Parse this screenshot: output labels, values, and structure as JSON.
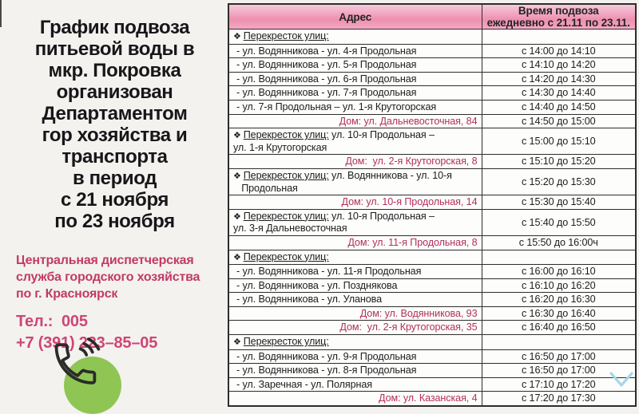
{
  "panel": {
    "title": "График подвоза\nпитьевой воды в\nмкр. Покровка\nорганизован\nДепартаментом\nгор хозяйства и\nтранспорта\nв период\nс 21 ноября\nпо 23 ноября",
    "service": "Центральная диспетчерская\nслужба городского хозяйства\nпо  г. Красноярск",
    "phone_label": "Тел.:  005",
    "phone_number": "+7 (391) 223–85–05"
  },
  "colors": {
    "accent_crimson": "#c23a68",
    "phone_pink": "#ce4577",
    "dom_text_red": "#b12f5e",
    "header_pink": "#ee8fb0",
    "badge_green": "#8fc653",
    "chevron_blue": "#a5d6ea"
  },
  "table": {
    "header": {
      "address": "Адрес",
      "time": "Время подвоза\nежедневно с 21.11 по 23.11."
    },
    "rows": [
      {
        "type": "section",
        "bullet": "❖",
        "underlined": "Перекресток улиц:",
        "rest": "",
        "time": ""
      },
      {
        "type": "detail",
        "address": "- ул. Водянникова - ул. 4-я Продольная",
        "time": "с 14:00 до 14:10"
      },
      {
        "type": "detail",
        "address": "- ул. Водянникова - ул. 5-я Продольная",
        "time": "с 14:10 до 14:20"
      },
      {
        "type": "detail",
        "address": "- ул. Водянникова - ул. 6-я Продольная",
        "time": "с 14:20 до 14:30"
      },
      {
        "type": "detail",
        "address": "- ул. Водянникова - ул. 7-я Продольная",
        "time": "с 14:30 до 14:40"
      },
      {
        "type": "detail",
        "address": "- ул. 7-я Продольная – ул. 1-я Крутогорская",
        "time": "с 14:40 до 14:50"
      },
      {
        "type": "dom",
        "address": "Дом: ул. Дальневосточная, 84",
        "time": "с 14:50 до 15:00"
      },
      {
        "type": "section",
        "bullet": "❖",
        "underlined": "Перекресток улиц:",
        "rest": " ул. 10-я Продольная –\nул. 1-я Крутогорская",
        "time": "с 15:00 до 15:10"
      },
      {
        "type": "dom",
        "address": "Дом:  ул. 2-я Крутогорская, 8",
        "time": "с 15:10 до 15:20"
      },
      {
        "type": "section",
        "bullet": "❖",
        "underlined": "Перекресток улиц:",
        "rest": " ул. Водянникова - ул. 10-я\n   Продольная",
        "time": "с 15:20 до 15:30"
      },
      {
        "type": "dom",
        "address": "Дом: ул. 10-я Продольная, 14",
        "time": "с 15:30 до 15:40"
      },
      {
        "type": "section",
        "bullet": "❖",
        "underlined": "Перекресток улиц:",
        "rest": " ул. 10-я Продольная –\nул. 3-я Дальневосточная",
        "time": "с 15:40 до 15:50"
      },
      {
        "type": "dom",
        "address": "Дом: ул. 11-я Продольная, 8",
        "time": "с 15:50 до 16:00ч"
      },
      {
        "type": "section",
        "bullet": "❖",
        "underlined": "Перекресток улиц:",
        "rest": "",
        "time": ""
      },
      {
        "type": "detail",
        "address": "- ул. Водянникова - ул. 11-я Продольная",
        "time": "с 16:00 до 16:10"
      },
      {
        "type": "detail",
        "address": "- ул. Водянникова - ул. Позднякова",
        "time": "с 16:10 до 16:20"
      },
      {
        "type": "detail",
        "address": "- ул. Водянникова - ул. Уланова",
        "time": "с 16:20 до 16:30"
      },
      {
        "type": "dom",
        "address": "Дом: ул. Водянникова, 93",
        "time": "с 16:30 до 16:40"
      },
      {
        "type": "dom",
        "address": "Дом:  ул. 2-я Крутогорская, 35",
        "time": "с 16:40 до 16:50"
      },
      {
        "type": "section",
        "bullet": "❖",
        "underlined": "Перекресток улиц:",
        "rest": "",
        "time": ""
      },
      {
        "type": "detail",
        "address": "- ул. Водянникова - ул. 9-я Продольная",
        "time": "с 16:50 до 17:00"
      },
      {
        "type": "detail",
        "address": "- ул. Водянникова - ул. 8-я Продольная",
        "time": "с 16:50 до 17:00"
      },
      {
        "type": "detail",
        "address": "- ул. Заречная - ул. Полярная",
        "time": "с 17:10 до 17:20"
      },
      {
        "type": "dom",
        "address": "Дом: ул. Казанская, 4",
        "time": "с 17:20 до 17:30"
      }
    ]
  }
}
